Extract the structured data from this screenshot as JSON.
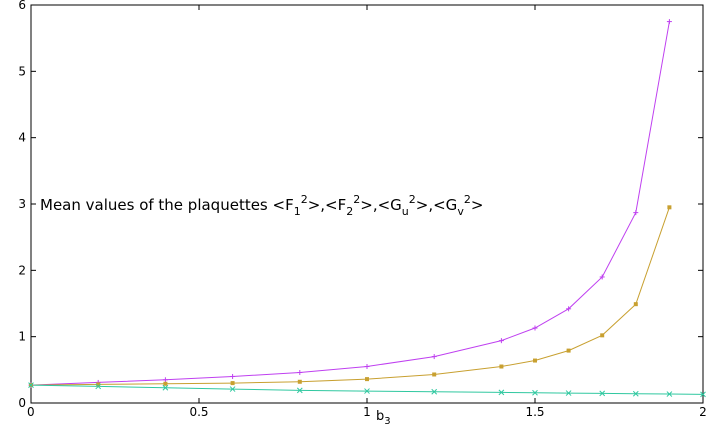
{
  "chart_data": {
    "type": "line",
    "xlabel": "b",
    "xlabel_sub": "3",
    "xlim": [
      0,
      2
    ],
    "ylim": [
      0,
      6
    ],
    "x_ticks": [
      "0",
      "0.5",
      "1",
      "1.5",
      "2"
    ],
    "y_ticks": [
      "0",
      "1",
      "2",
      "3",
      "4",
      "5",
      "6"
    ],
    "grid": false,
    "annotation": {
      "prefix": "Mean values of the plaquettes <F",
      "sub1": "1",
      "sup1": "2",
      "mid1": ">,<F",
      "sub2": "2",
      "sup2": "2",
      "mid2": ">,<G",
      "sub3": "u",
      "sup3": "2",
      "mid3": ">,<G",
      "sub4": "v",
      "sup4": "2",
      "suffix": ">"
    },
    "series": [
      {
        "color": "#bf40f0",
        "marker": "plus",
        "x": [
          0,
          0.2,
          0.4,
          0.6,
          0.8,
          1.0,
          1.2,
          1.4,
          1.5,
          1.6,
          1.7,
          1.8,
          1.9
        ],
        "values": [
          0.27,
          0.31,
          0.35,
          0.4,
          0.46,
          0.55,
          0.7,
          0.94,
          1.13,
          1.42,
          1.9,
          2.87,
          5.75
        ]
      },
      {
        "color": "#c8a030",
        "marker": "square",
        "x": [
          0,
          0.2,
          0.4,
          0.6,
          0.8,
          1.0,
          1.2,
          1.4,
          1.5,
          1.6,
          1.7,
          1.8,
          1.9
        ],
        "values": [
          0.27,
          0.28,
          0.29,
          0.3,
          0.32,
          0.36,
          0.43,
          0.55,
          0.64,
          0.79,
          1.02,
          1.49,
          2.95
        ]
      },
      {
        "color": "#30c8a0",
        "marker": "x",
        "x": [
          0,
          0.2,
          0.4,
          0.6,
          0.8,
          1.0,
          1.2,
          1.4,
          1.5,
          1.6,
          1.7,
          1.8,
          1.9,
          2.0
        ],
        "values": [
          0.27,
          0.25,
          0.23,
          0.21,
          0.19,
          0.18,
          0.17,
          0.16,
          0.155,
          0.15,
          0.145,
          0.14,
          0.135,
          0.13
        ]
      }
    ]
  }
}
